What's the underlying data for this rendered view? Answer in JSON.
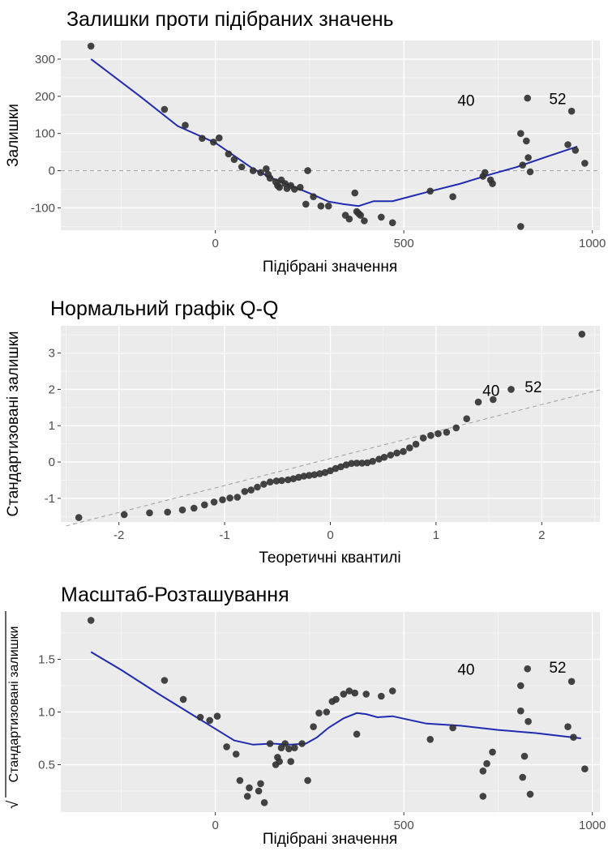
{
  "chart_data": [
    {
      "id": "p1",
      "type": "scatter",
      "title": "Залишки проти підібраних значень",
      "xlabel": "Підібрані значення",
      "ylabel": "Залишки",
      "xlim": [
        -410,
        1020
      ],
      "ylim": [
        -160,
        350
      ],
      "xticks": [
        0,
        500,
        1000
      ],
      "yticks": [
        -100,
        0,
        100,
        200,
        300
      ],
      "hline": 0,
      "points": [
        [
          -330,
          335
        ],
        [
          -135,
          165
        ],
        [
          -80,
          122
        ],
        [
          -35,
          87
        ],
        [
          -5,
          77
        ],
        [
          10,
          88
        ],
        [
          35,
          45
        ],
        [
          50,
          30
        ],
        [
          70,
          10
        ],
        [
          100,
          0
        ],
        [
          120,
          -5
        ],
        [
          135,
          5
        ],
        [
          140,
          -10
        ],
        [
          145,
          -20
        ],
        [
          160,
          -30
        ],
        [
          165,
          -40
        ],
        [
          170,
          -45
        ],
        [
          175,
          -25
        ],
        [
          185,
          -35
        ],
        [
          190,
          -48
        ],
        [
          200,
          -40
        ],
        [
          210,
          -50
        ],
        [
          225,
          -45
        ],
        [
          240,
          -90
        ],
        [
          245,
          0
        ],
        [
          260,
          -70
        ],
        [
          280,
          -95
        ],
        [
          300,
          -95
        ],
        [
          345,
          -120
        ],
        [
          355,
          -130
        ],
        [
          370,
          -60
        ],
        [
          375,
          -110
        ],
        [
          380,
          -115
        ],
        [
          385,
          -120
        ],
        [
          395,
          -135
        ],
        [
          440,
          -125
        ],
        [
          470,
          -140
        ],
        [
          570,
          -55
        ],
        [
          630,
          -70
        ],
        [
          710,
          -15
        ],
        [
          715,
          -5
        ],
        [
          730,
          -25
        ],
        [
          735,
          -35
        ],
        [
          810,
          -150
        ],
        [
          810,
          100
        ],
        [
          815,
          15
        ],
        [
          825,
          80
        ],
        [
          828,
          195
        ],
        [
          830,
          35
        ],
        [
          835,
          -3
        ],
        [
          935,
          70
        ],
        [
          945,
          160
        ],
        [
          955,
          55
        ],
        [
          980,
          20
        ]
      ],
      "smooth": [
        [
          -330,
          300
        ],
        [
          -200,
          200
        ],
        [
          -100,
          120
        ],
        [
          0,
          75
        ],
        [
          50,
          40
        ],
        [
          100,
          5
        ],
        [
          150,
          -20
        ],
        [
          200,
          -40
        ],
        [
          260,
          -65
        ],
        [
          300,
          -83
        ],
        [
          340,
          -90
        ],
        [
          380,
          -95
        ],
        [
          420,
          -82
        ],
        [
          470,
          -82
        ],
        [
          560,
          -58
        ],
        [
          650,
          -35
        ],
        [
          730,
          -10
        ],
        [
          800,
          10
        ],
        [
          880,
          38
        ],
        [
          960,
          65
        ]
      ],
      "labels": [
        {
          "text": "40",
          "x": 665,
          "y": 188
        },
        {
          "text": "52",
          "x": 908,
          "y": 192
        }
      ]
    },
    {
      "id": "p2",
      "type": "scatter",
      "title": "Нормальний графік Q-Q",
      "xlabel": "Теоретичні квантилі",
      "ylabel": "Стандартизовані залишки",
      "xlim": [
        -2.55,
        2.55
      ],
      "ylim": [
        -1.65,
        3.75
      ],
      "xticks": [
        -2,
        -1,
        0,
        1,
        2
      ],
      "yticks": [
        -1,
        0,
        1,
        2,
        3
      ],
      "refline": [
        [
          -2.5,
          -1.76
        ],
        [
          2.55,
          1.99
        ]
      ],
      "points": [
        [
          -2.38,
          -1.53
        ],
        [
          -1.95,
          -1.45
        ],
        [
          -1.71,
          -1.4
        ],
        [
          -1.54,
          -1.38
        ],
        [
          -1.4,
          -1.32
        ],
        [
          -1.29,
          -1.27
        ],
        [
          -1.19,
          -1.18
        ],
        [
          -1.1,
          -1.1
        ],
        [
          -1.02,
          -1.04
        ],
        [
          -0.95,
          -0.99
        ],
        [
          -0.88,
          -0.97
        ],
        [
          -0.81,
          -0.81
        ],
        [
          -0.75,
          -0.77
        ],
        [
          -0.69,
          -0.69
        ],
        [
          -0.63,
          -0.61
        ],
        [
          -0.57,
          -0.55
        ],
        [
          -0.51,
          -0.52
        ],
        [
          -0.46,
          -0.51
        ],
        [
          -0.4,
          -0.49
        ],
        [
          -0.35,
          -0.46
        ],
        [
          -0.3,
          -0.42
        ],
        [
          -0.25,
          -0.39
        ],
        [
          -0.2,
          -0.37
        ],
        [
          -0.15,
          -0.35
        ],
        [
          -0.1,
          -0.32
        ],
        [
          -0.05,
          -0.29
        ],
        [
          0.0,
          -0.24
        ],
        [
          0.05,
          -0.18
        ],
        [
          0.1,
          -0.13
        ],
        [
          0.15,
          -0.08
        ],
        [
          0.2,
          -0.04
        ],
        [
          0.25,
          -0.03
        ],
        [
          0.3,
          -0.03
        ],
        [
          0.35,
          -0.02
        ],
        [
          0.4,
          0.02
        ],
        [
          0.46,
          0.08
        ],
        [
          0.51,
          0.13
        ],
        [
          0.57,
          0.19
        ],
        [
          0.63,
          0.25
        ],
        [
          0.69,
          0.29
        ],
        [
          0.75,
          0.39
        ],
        [
          0.81,
          0.49
        ],
        [
          0.88,
          0.66
        ],
        [
          0.95,
          0.73
        ],
        [
          1.02,
          0.78
        ],
        [
          1.1,
          0.82
        ],
        [
          1.19,
          0.94
        ],
        [
          1.29,
          1.19
        ],
        [
          1.4,
          1.65
        ],
        [
          1.54,
          1.72
        ],
        [
          1.71,
          2.0
        ],
        [
          2.38,
          3.52
        ]
      ],
      "labels": [
        {
          "text": "40",
          "x": 1.52,
          "y": 1.95
        },
        {
          "text": "52",
          "x": 1.92,
          "y": 2.05
        }
      ]
    },
    {
      "id": "p3",
      "type": "scatter",
      "title": "Масштаб-Розташування",
      "xlabel": "Підібрані значення",
      "ylabel": "Стандартизовані залишки",
      "ylabel_radical": "√",
      "xlim": [
        -410,
        1020
      ],
      "ylim": [
        0.05,
        1.95
      ],
      "xticks": [
        0,
        500,
        1000
      ],
      "yticks": [
        0.5,
        1.0,
        1.5
      ],
      "yticklabels": [
        "0.5",
        "1.0",
        "1.5"
      ],
      "points": [
        [
          -330,
          1.87
        ],
        [
          -135,
          1.3
        ],
        [
          -85,
          1.12
        ],
        [
          -40,
          0.95
        ],
        [
          -15,
          0.92
        ],
        [
          5,
          0.96
        ],
        [
          30,
          0.67
        ],
        [
          55,
          0.6
        ],
        [
          65,
          0.35
        ],
        [
          85,
          0.2
        ],
        [
          90,
          0.28
        ],
        [
          115,
          0.25
        ],
        [
          120,
          0.32
        ],
        [
          130,
          0.14
        ],
        [
          145,
          0.7
        ],
        [
          160,
          0.5
        ],
        [
          165,
          0.57
        ],
        [
          170,
          0.53
        ],
        [
          175,
          0.66
        ],
        [
          185,
          0.7
        ],
        [
          195,
          0.65
        ],
        [
          200,
          0.53
        ],
        [
          210,
          0.66
        ],
        [
          230,
          0.7
        ],
        [
          245,
          0.35
        ],
        [
          260,
          0.86
        ],
        [
          275,
          0.99
        ],
        [
          295,
          1.0
        ],
        [
          310,
          1.1
        ],
        [
          320,
          1.12
        ],
        [
          340,
          1.17
        ],
        [
          355,
          1.2
        ],
        [
          370,
          1.18
        ],
        [
          375,
          0.79
        ],
        [
          400,
          1.17
        ],
        [
          440,
          1.15
        ],
        [
          470,
          1.2
        ],
        [
          570,
          0.74
        ],
        [
          630,
          0.85
        ],
        [
          710,
          0.2
        ],
        [
          710,
          0.44
        ],
        [
          720,
          0.51
        ],
        [
          735,
          0.62
        ],
        [
          810,
          1.25
        ],
        [
          810,
          1.01
        ],
        [
          815,
          0.38
        ],
        [
          820,
          0.58
        ],
        [
          828,
          1.41
        ],
        [
          830,
          0.91
        ],
        [
          835,
          0.22
        ],
        [
          935,
          0.86
        ],
        [
          945,
          1.29
        ],
        [
          950,
          0.76
        ],
        [
          980,
          0.46
        ]
      ],
      "smooth": [
        [
          -330,
          1.57
        ],
        [
          -250,
          1.4
        ],
        [
          -150,
          1.17
        ],
        [
          -50,
          0.95
        ],
        [
          50,
          0.73
        ],
        [
          100,
          0.69
        ],
        [
          150,
          0.7
        ],
        [
          200,
          0.69
        ],
        [
          240,
          0.7
        ],
        [
          270,
          0.76
        ],
        [
          300,
          0.85
        ],
        [
          340,
          0.94
        ],
        [
          375,
          0.99
        ],
        [
          400,
          0.98
        ],
        [
          430,
          0.95
        ],
        [
          470,
          0.96
        ],
        [
          560,
          0.89
        ],
        [
          650,
          0.87
        ],
        [
          750,
          0.83
        ],
        [
          850,
          0.8
        ],
        [
          970,
          0.75
        ]
      ],
      "labels": [
        {
          "text": "40",
          "x": 665,
          "y": 1.4
        },
        {
          "text": "52",
          "x": 908,
          "y": 1.42
        }
      ]
    }
  ]
}
